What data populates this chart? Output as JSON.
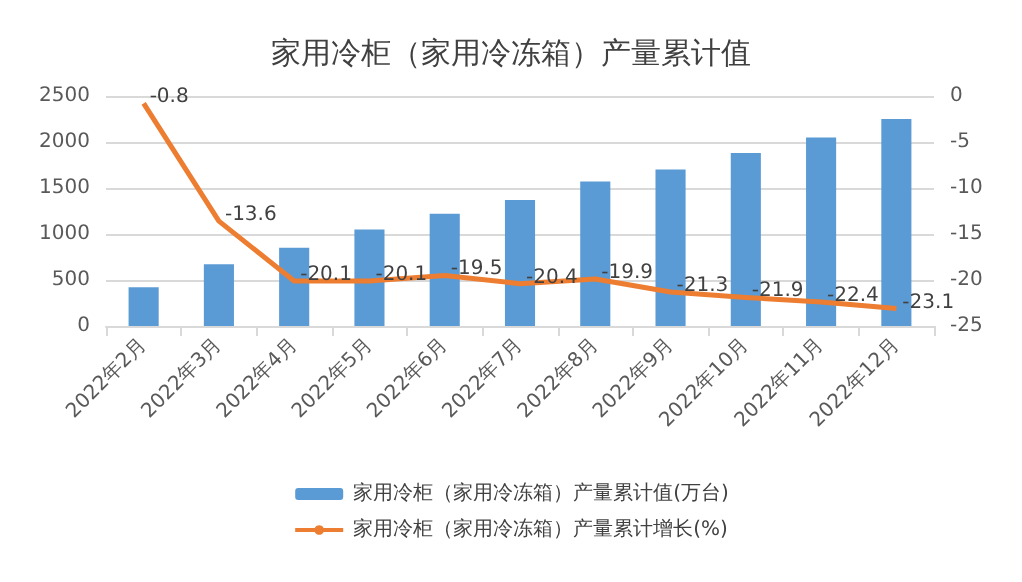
{
  "chart_data": {
    "type": "bar",
    "title": "家用冷柜（家用冷冻箱）产量累计值",
    "categories": [
      "2022年2月",
      "2022年3月",
      "2022年4月",
      "2022年5月",
      "2022年6月",
      "2022年7月",
      "2022年8月",
      "2022年9月",
      "2022年10月",
      "2022年11月",
      "2022年12月"
    ],
    "series": [
      {
        "name": "家用冷柜（家用冷冻箱）产量累计值(万台)",
        "color": "#5b9bd5",
        "values": [
          420,
          670,
          850,
          1050,
          1220,
          1370,
          1570,
          1700,
          1880,
          2050,
          2250
        ]
      },
      {
        "name": "家用冷柜（家用冷冻箱）产量累计增长(%)",
        "type": "line",
        "axis": "y2",
        "color": "#ed7d31",
        "values": [
          -0.8,
          -13.6,
          -20.1,
          -20.1,
          -19.5,
          -20.4,
          -19.9,
          -21.3,
          -21.9,
          -22.4,
          -23.1
        ],
        "value_labels": [
          "-0.8",
          "-13.6",
          "-20.1",
          "-20.1",
          "-19.5",
          "-20.4",
          "-19.9",
          "-21.3",
          "-21.9",
          "-22.4",
          "-23.1"
        ]
      }
    ],
    "ylim": [
      0,
      2500
    ],
    "yticks": [
      0,
      500,
      1000,
      1500,
      2000,
      2500
    ],
    "y2lim": [
      -25,
      0
    ],
    "y2ticks": [
      -25,
      -20,
      -15,
      -10,
      -5,
      0
    ],
    "grid": "y",
    "legend": "bottom",
    "marker": "none"
  }
}
